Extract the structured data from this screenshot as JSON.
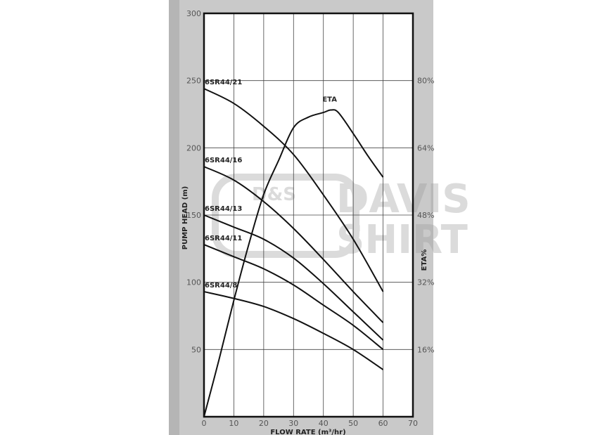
{
  "chart_data": {
    "type": "line",
    "title": "",
    "xlabel": "FLOW RATE (m³/hr)",
    "ylabel": "PUMP HEAD (m)",
    "y2label": "ETA%",
    "xlim": [
      0,
      70
    ],
    "ylim": [
      0,
      300
    ],
    "y2lim": [
      0,
      96
    ],
    "xticks": [
      "0",
      "10",
      "20",
      "30",
      "40",
      "50",
      "60",
      "70"
    ],
    "yticks": [
      "50",
      "100",
      "150",
      "200",
      "250",
      "300"
    ],
    "y2ticks": [
      "16%",
      "32%",
      "48%",
      "64%",
      "80%"
    ],
    "grid": true,
    "series": [
      {
        "name": "6SR44/21",
        "axis": "left",
        "x": [
          0,
          10,
          20,
          30,
          40,
          50,
          60
        ],
        "y": [
          244,
          233,
          216,
          195,
          165,
          132,
          93
        ]
      },
      {
        "name": "6SR44/16",
        "axis": "left",
        "x": [
          0,
          10,
          20,
          30,
          40,
          50,
          60
        ],
        "y": [
          186,
          176,
          160,
          140,
          117,
          93,
          70
        ]
      },
      {
        "name": "6SR44/13",
        "axis": "left",
        "x": [
          0,
          10,
          20,
          30,
          40,
          50,
          60
        ],
        "y": [
          150,
          141,
          132,
          118,
          99,
          78,
          57
        ]
      },
      {
        "name": "6SR44/11",
        "axis": "left",
        "x": [
          0,
          10,
          20,
          30,
          40,
          50,
          60
        ],
        "y": [
          128,
          119,
          110,
          98,
          83,
          68,
          50
        ]
      },
      {
        "name": "6SR44/8",
        "axis": "left",
        "x": [
          0,
          10,
          20,
          30,
          40,
          50,
          60
        ],
        "y": [
          93,
          88,
          82,
          73,
          62,
          50,
          35
        ]
      },
      {
        "name": "ETA",
        "axis": "right",
        "x": [
          0,
          5,
          10,
          15,
          20,
          25,
          30,
          35,
          40,
          42.5,
          45,
          50,
          55,
          60
        ],
        "y": [
          0,
          13.5,
          27.7,
          41,
          52.9,
          61,
          68.8,
          71.3,
          72.4,
          73,
          72.4,
          67.4,
          62,
          57
        ]
      }
    ]
  },
  "watermark": {
    "text": "D&S DAVIS SHIRT",
    "logo_text": "D&S",
    "line1": "DAVIS",
    "line2": "SHIRT"
  },
  "colors": {
    "panel": "#c9c9c9",
    "plot": "#ffffff",
    "line": "#111111",
    "grid": "#333333"
  }
}
